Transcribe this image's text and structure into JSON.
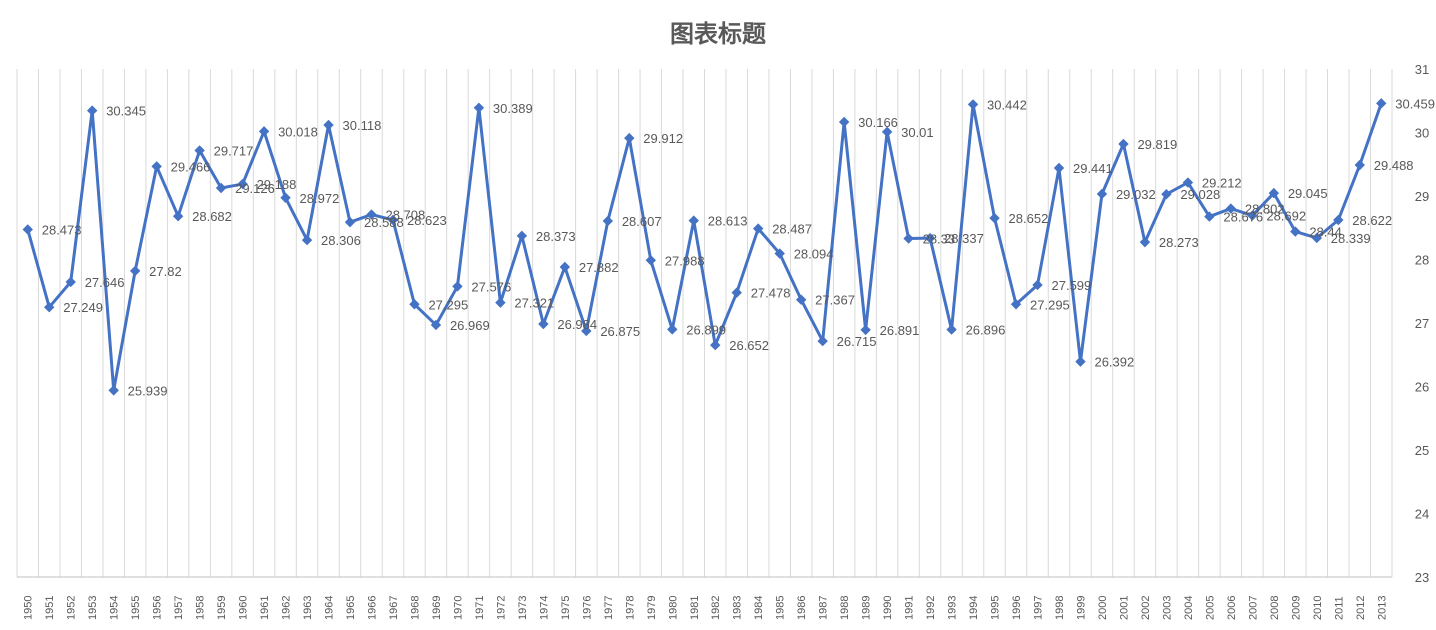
{
  "chart_data": {
    "type": "line",
    "title": "图表标题",
    "xlabel": "",
    "ylabel": "",
    "ylim": [
      23,
      31
    ],
    "yticks": [
      23,
      24,
      25,
      26,
      27,
      28,
      29,
      30,
      31
    ],
    "grid": "vertical",
    "marker": "diamond",
    "color": "#4472C4",
    "categories": [
      "1950",
      "1951",
      "1952",
      "1953",
      "1954",
      "1955",
      "1956",
      "1957",
      "1958",
      "1959",
      "1960",
      "1961",
      "1962",
      "1963",
      "1964",
      "1965",
      "1966",
      "1967",
      "1968",
      "1969",
      "1970",
      "1971",
      "1972",
      "1973",
      "1974",
      "1975",
      "1976",
      "1977",
      "1978",
      "1979",
      "1980",
      "1981",
      "1982",
      "1983",
      "1984",
      "1985",
      "1986",
      "1987",
      "1988",
      "1989",
      "1990",
      "1991",
      "1992",
      "1993",
      "1994",
      "1995",
      "1996",
      "1997",
      "1998",
      "1999",
      "2000",
      "2001",
      "2002",
      "2003",
      "2004",
      "2005",
      "2006",
      "2007",
      "2008",
      "2009",
      "2010",
      "2011",
      "2012",
      "2013"
    ],
    "values": [
      28.473,
      27.249,
      27.646,
      30.345,
      25.939,
      27.82,
      29.466,
      28.682,
      29.717,
      29.126,
      29.188,
      30.018,
      28.972,
      28.306,
      30.118,
      28.588,
      28.708,
      28.623,
      27.295,
      26.969,
      27.576,
      30.389,
      27.321,
      28.373,
      26.984,
      27.882,
      26.875,
      28.607,
      29.912,
      27.988,
      26.899,
      28.613,
      26.652,
      27.478,
      28.487,
      28.094,
      27.367,
      26.715,
      30.166,
      26.891,
      30.01,
      28.33,
      28.337,
      26.896,
      30.442,
      28.652,
      27.295,
      27.599,
      29.441,
      26.392,
      29.032,
      29.819,
      28.273,
      29.028,
      29.212,
      28.676,
      28.802,
      28.692,
      29.045,
      28.44,
      28.339,
      28.622,
      29.488,
      30.459
    ],
    "labels": [
      "28.473",
      "27.249",
      "27.646",
      "30.345",
      "25.939",
      "27.82",
      "29.466",
      "28.682",
      "29.717",
      "29.126",
      "29.188",
      "30.018",
      "28.972",
      "28.306",
      "30.118",
      "28.588",
      "28.708",
      "28.623",
      "27.295",
      "26.969",
      "27.576",
      "30.389",
      "27.321",
      "28.373",
      "26.984",
      "27.882",
      "26.875",
      "28.607",
      "29.912",
      "27.988",
      "26.899",
      "28.613",
      "26.652",
      "27.478",
      "28.487",
      "28.094",
      "27.367",
      "26.715",
      "30.166",
      "26.891",
      "30.01",
      "28.33",
      "28.337",
      "26.896",
      "30.442",
      "28.652",
      "27.295",
      "27.599",
      "29.441",
      "26.392",
      "29.032",
      "29.819",
      "28.273",
      "29.028",
      "29.212",
      "28.676",
      "28.802",
      "28.692",
      "29.045",
      "28.44",
      "28.339",
      "28.622",
      "29.488",
      "30.459"
    ]
  }
}
